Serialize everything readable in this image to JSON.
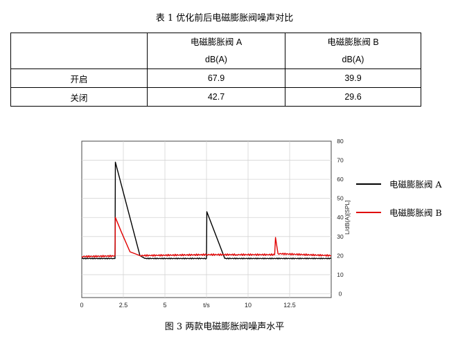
{
  "table": {
    "title": "表 1  优化前后电磁膨胀阀噪声对比",
    "headers": [
      {
        "name": "",
        "unit": ""
      },
      {
        "name": "电磁膨胀阀 A",
        "unit": "dB(A)"
      },
      {
        "name": "电磁膨胀阀 B",
        "unit": "dB(A)"
      }
    ],
    "rows": [
      {
        "label": "开启",
        "a": "67.9",
        "b": "39.9"
      },
      {
        "label": "关闭",
        "a": "42.7",
        "b": "29.6"
      }
    ]
  },
  "figure": {
    "caption": "图 3 两款电磁膨胀阀噪声水平"
  },
  "chart_data": {
    "type": "line",
    "xlabel": "t/s",
    "ylabel": "L/dB(A)[SPL]",
    "xlim": [
      0,
      15
    ],
    "ylim": [
      -2,
      80
    ],
    "x_ticks": [
      {
        "value": 0,
        "label": "0"
      },
      {
        "value": 2.5,
        "label": "2.5"
      },
      {
        "value": 5,
        "label": "5"
      },
      {
        "value": 7.5,
        "label": "t/s"
      },
      {
        "value": 10,
        "label": "10"
      },
      {
        "value": 12.5,
        "label": "12.5"
      }
    ],
    "y_ticks": [
      0,
      10,
      20,
      30,
      40,
      50,
      60,
      70,
      80
    ],
    "grid": true,
    "legend_position": "right",
    "series": [
      {
        "name": "电磁膨胀阀 A",
        "color": "#000000",
        "points": [
          [
            0,
            18.5
          ],
          [
            1.9,
            18.5
          ],
          [
            2.0,
            18.5
          ],
          [
            2.02,
            69
          ],
          [
            3.5,
            20
          ],
          [
            3.8,
            18.5
          ],
          [
            7.5,
            18.5
          ],
          [
            7.52,
            43
          ],
          [
            8.6,
            18.5
          ],
          [
            15,
            18.5
          ]
        ]
      },
      {
        "name": "电磁膨胀阀 B",
        "color": "#e00000",
        "points": [
          [
            0,
            19.5
          ],
          [
            1.95,
            19.8
          ],
          [
            2.0,
            20
          ],
          [
            2.02,
            40
          ],
          [
            2.4,
            32
          ],
          [
            2.9,
            22
          ],
          [
            3.5,
            20
          ],
          [
            7.5,
            20.5
          ],
          [
            9.3,
            20.5
          ],
          [
            11.6,
            20.5
          ],
          [
            11.65,
            29.5
          ],
          [
            11.8,
            21
          ],
          [
            15,
            20
          ]
        ]
      }
    ]
  }
}
